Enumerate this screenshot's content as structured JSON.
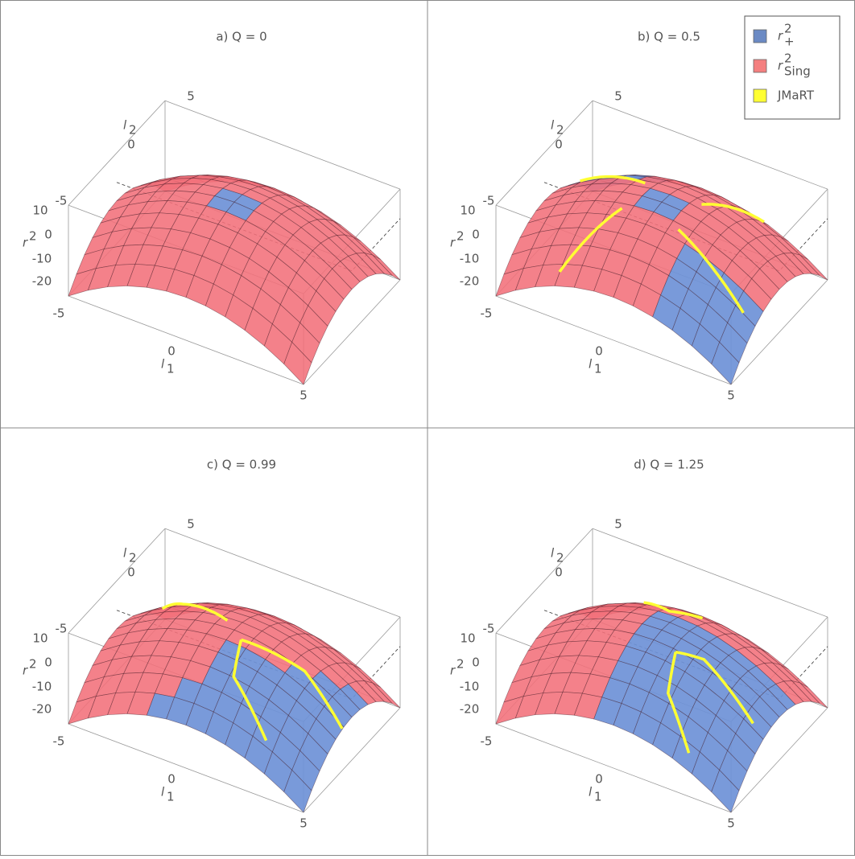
{
  "panels": [
    {
      "title": "a) Q = 0"
    },
    {
      "title": "b) Q = 0.5"
    },
    {
      "title": "c) Q = 0.99"
    },
    {
      "title": "d) Q = 1.25"
    }
  ],
  "axes": {
    "z_label": "r",
    "z_label_sup": "2",
    "z_ticks": [
      "10",
      "0",
      "-10",
      "-20"
    ],
    "l1_label": "l",
    "l1_label_sub": "1",
    "l1_ticks": [
      "-5",
      "0",
      "5"
    ],
    "l2_label": "l",
    "l2_label_sub": "2",
    "l2_ticks": [
      "5",
      "0",
      "-5"
    ]
  },
  "legend": [
    {
      "base": "r",
      "sup": "2",
      "sub": "+",
      "color": "#6b8ac4"
    },
    {
      "base": "r",
      "sup": "2",
      "sub": "Sing",
      "color": "#f47f7f"
    },
    {
      "label": "JMaRT",
      "color": "#ffff33"
    }
  ]
}
